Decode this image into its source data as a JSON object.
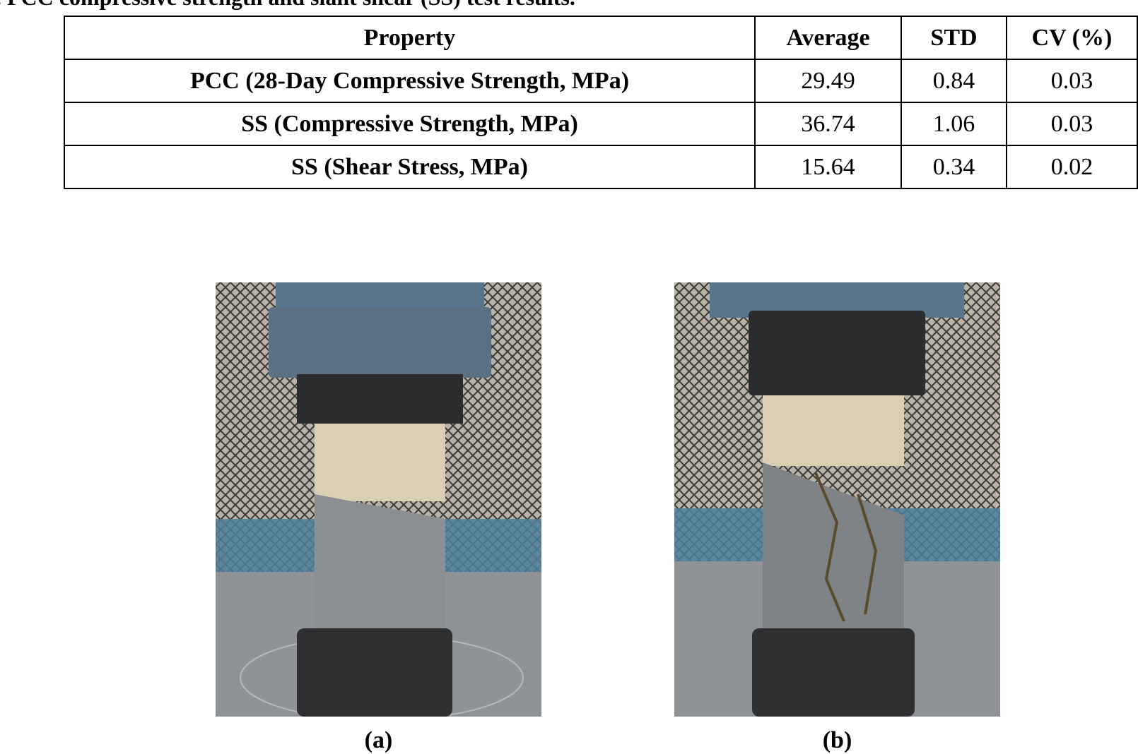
{
  "caption": ". PCC compressive strength and slant shear (SS) test results.",
  "table": {
    "header": [
      "Property",
      "Average",
      "STD",
      "CV (%)"
    ],
    "rows": [
      [
        "PCC (28-Day Compressive Strength, MPa)",
        "29.49",
        "0.84",
        "0.03"
      ],
      [
        "SS (Compressive Strength, MPa)",
        "36.74",
        "1.06",
        "0.03"
      ],
      [
        "SS (Shear Stress, MPa)",
        "15.64",
        "0.34",
        "0.02"
      ]
    ]
  },
  "figures": [
    {
      "label": "(a)"
    },
    {
      "label": "(b)"
    }
  ]
}
